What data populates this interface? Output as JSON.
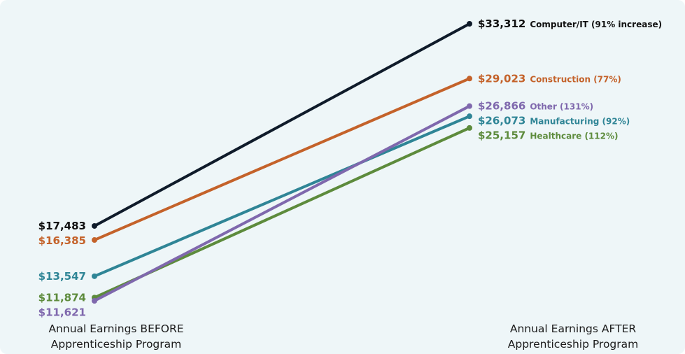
{
  "chart_data": {
    "type": "line",
    "x": [
      "before",
      "after"
    ],
    "x_labels": [
      [
        "Annual Earnings BEFORE",
        "Apprenticeship Program"
      ],
      [
        "Annual Earnings AFTER",
        "Apprenticeship Program"
      ]
    ],
    "ylim": [
      10000,
      35000
    ],
    "grid": false,
    "series": [
      {
        "name": "Computer/IT",
        "note": "(91% increase)",
        "before": 17483,
        "after": 33312,
        "before_label": "$17,483",
        "after_label": "$33,312",
        "color": "#0f1b2a"
      },
      {
        "name": "Construction",
        "note": "(77%)",
        "before": 16385,
        "after": 29023,
        "before_label": "$16,385",
        "after_label": "$29,023",
        "color": "#c4622a"
      },
      {
        "name": "Healthcare",
        "note": "(112%)",
        "before": 11874,
        "after": 25157,
        "before_label": "$11,874",
        "after_label": "$25,157",
        "color": "#5d8b3c"
      },
      {
        "name": "Manufacturing",
        "note": "(92%)",
        "before": 13547,
        "after": 26073,
        "before_label": "$13,547",
        "after_label": "$26,073",
        "color": "#2f8596"
      },
      {
        "name": "Other",
        "note": "(131%)",
        "before": 11621,
        "after": 26866,
        "before_label": "$11,621",
        "after_label": "$26,866",
        "color": "#7f68ad"
      }
    ]
  }
}
